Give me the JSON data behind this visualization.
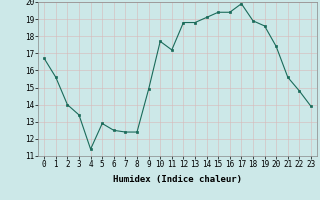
{
  "x": [
    0,
    1,
    2,
    3,
    4,
    5,
    6,
    7,
    8,
    9,
    10,
    11,
    12,
    13,
    14,
    15,
    16,
    17,
    18,
    19,
    20,
    21,
    22,
    23
  ],
  "y": [
    16.7,
    15.6,
    14.0,
    13.4,
    11.4,
    12.9,
    12.5,
    12.4,
    12.4,
    14.9,
    17.7,
    17.2,
    18.8,
    18.8,
    19.1,
    19.4,
    19.4,
    19.9,
    18.9,
    18.6,
    17.4,
    15.6,
    14.8,
    13.9
  ],
  "line_color": "#1a6b5a",
  "marker_color": "#1a6b5a",
  "bg_color": "#cce8e8",
  "grid_color": "#b8d8d8",
  "xlabel": "Humidex (Indice chaleur)",
  "ylim": [
    11,
    20
  ],
  "yticks": [
    11,
    12,
    13,
    14,
    15,
    16,
    17,
    18,
    19,
    20
  ],
  "xticks": [
    0,
    1,
    2,
    3,
    4,
    5,
    6,
    7,
    8,
    9,
    10,
    11,
    12,
    13,
    14,
    15,
    16,
    17,
    18,
    19,
    20,
    21,
    22,
    23
  ],
  "label_fontsize": 6.5,
  "tick_fontsize": 5.5
}
